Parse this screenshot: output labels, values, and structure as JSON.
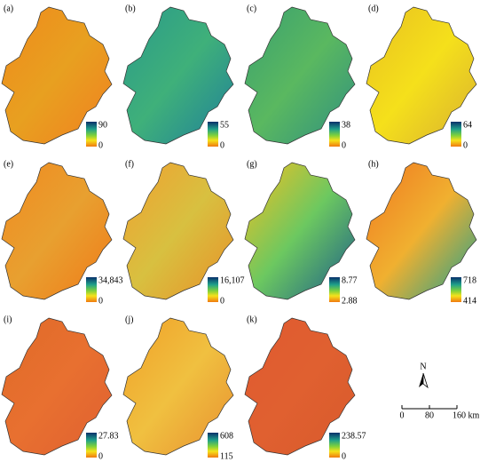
{
  "panels": [
    {
      "label": "(a)",
      "max": "90",
      "min": "0"
    },
    {
      "label": "(b)",
      "max": "55",
      "min": "0"
    },
    {
      "label": "(c)",
      "max": "38",
      "min": "0"
    },
    {
      "label": "(d)",
      "max": "64",
      "min": "0"
    },
    {
      "label": "(e)",
      "max": "34,843",
      "min": "0"
    },
    {
      "label": "(f)",
      "max": "16,107",
      "min": "0"
    },
    {
      "label": "(g)",
      "max": "8.77",
      "min": "2.88"
    },
    {
      "label": "(h)",
      "max": "718",
      "min": "414"
    },
    {
      "label": "(i)",
      "max": "27.83",
      "min": "0"
    },
    {
      "label": "(j)",
      "max": "608",
      "min": "115"
    },
    {
      "label": "(k)",
      "max": "238.57",
      "min": "0"
    }
  ],
  "north": "N",
  "scale_bar": {
    "labels": [
      "0",
      "80",
      "160 km"
    ]
  }
}
